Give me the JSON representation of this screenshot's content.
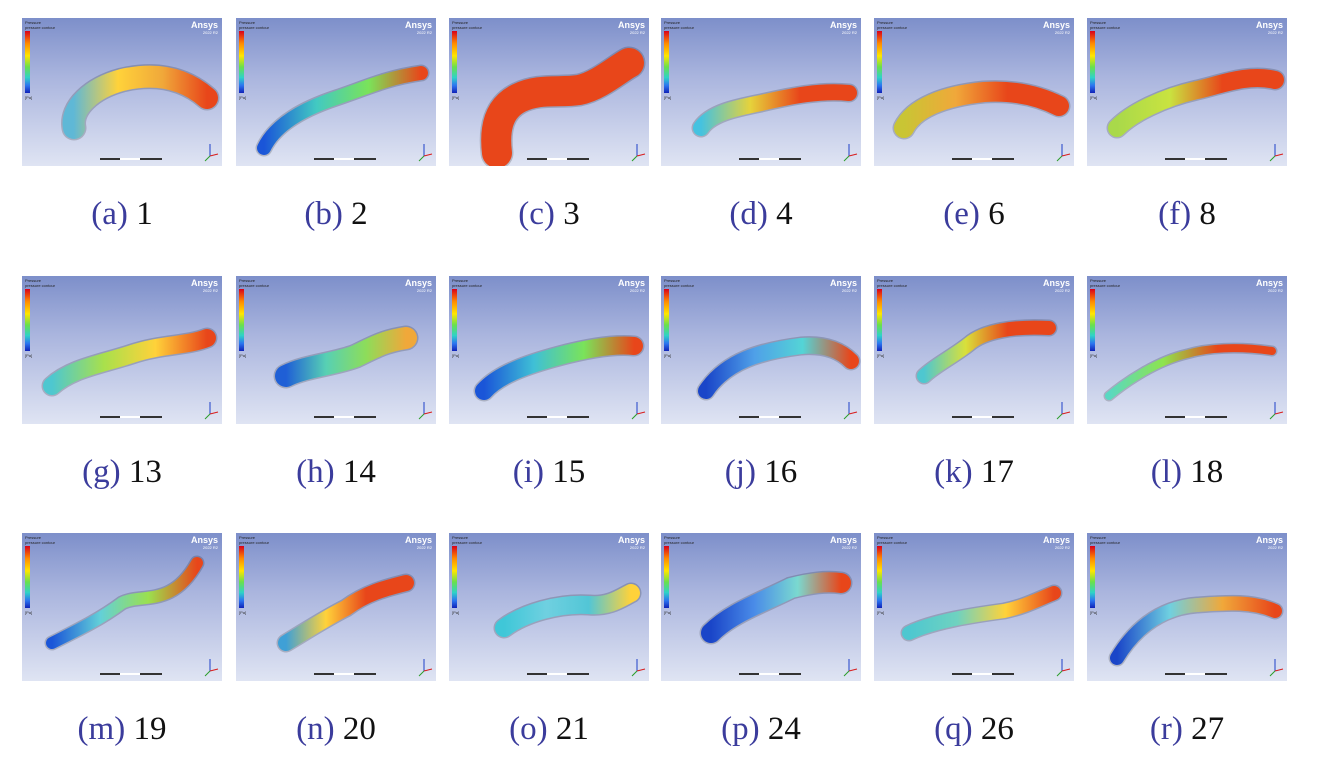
{
  "figure": {
    "panels": [
      {
        "letter": "(a)",
        "number": "1"
      },
      {
        "letter": "(b)",
        "number": "2"
      },
      {
        "letter": "(c)",
        "number": "3"
      },
      {
        "letter": "(d)",
        "number": "4"
      },
      {
        "letter": "(e)",
        "number": "6"
      },
      {
        "letter": "(f)",
        "number": "8"
      },
      {
        "letter": "(g)",
        "number": "13"
      },
      {
        "letter": "(h)",
        "number": "14"
      },
      {
        "letter": "(i)",
        "number": "15"
      },
      {
        "letter": "(j)",
        "number": "16"
      },
      {
        "letter": "(k)",
        "number": "17"
      },
      {
        "letter": "(l)",
        "number": "18"
      },
      {
        "letter": "(m)",
        "number": "19"
      },
      {
        "letter": "(n)",
        "number": "20"
      },
      {
        "letter": "(o)",
        "number": "21"
      },
      {
        "letter": "(p)",
        "number": "24"
      },
      {
        "letter": "(q)",
        "number": "26"
      },
      {
        "letter": "(r)",
        "number": "27"
      }
    ],
    "panel_text": {
      "brand": "Ansys",
      "version": "2022 R2",
      "legend_title": "Pressure",
      "legend_subtitle": "pressure contour",
      "unit": "[Pa]"
    },
    "colors": {
      "caption_letter": "#3b3c9c",
      "caption_number": "#111111",
      "high": "#e8461a",
      "low": "#1030c8"
    }
  }
}
